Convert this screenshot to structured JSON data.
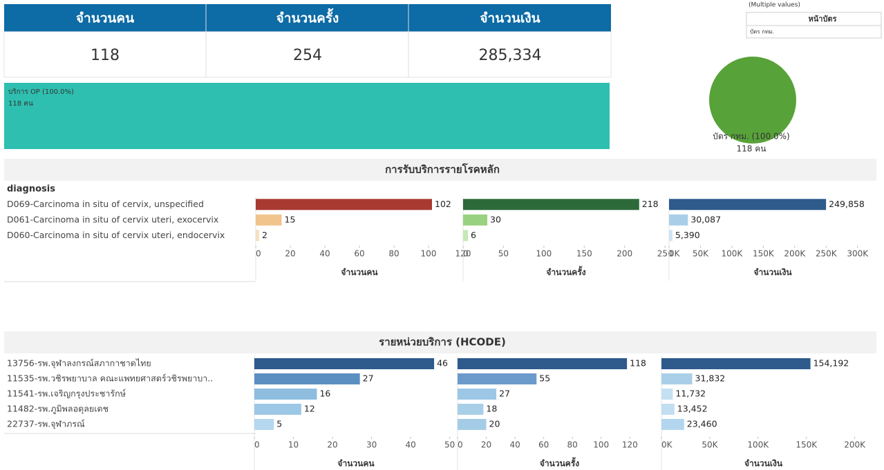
{
  "kpis": [
    {
      "label": "จำนวนคน",
      "value": "118"
    },
    {
      "label": "จำนวนครั้ง",
      "value": "254"
    },
    {
      "label": "จำนวนเงิน",
      "value": "285,334"
    }
  ],
  "filter": {
    "selection": "(Multiple values)",
    "label": "หน้าบัตร",
    "item": "บัตร กทม."
  },
  "treemap": {
    "label": "บริการ OP (100.0%)",
    "sublabel": "118 คน",
    "color": "#2ebfb0"
  },
  "pie": {
    "label": "บัตร กทม. (100.0%)",
    "sublabel": "118 คน",
    "color": "#58a23a"
  },
  "chart_data": [
    {
      "type": "bar",
      "title": "การรับบริการรายโรคหลัก",
      "row_header": "diagnosis",
      "categories": [
        "D069-Carcinoma in situ of cervix, unspecified",
        "D061-Carcinoma in situ of cervix uteri, exocervix",
        "D060-Carcinoma in situ of cervix uteri, endocervix"
      ],
      "panels": [
        {
          "axis_label": "จำนวนคน",
          "values": [
            102,
            15,
            2
          ],
          "colors": [
            "#a83a32",
            "#f0c48c",
            "#f5dfc4"
          ],
          "xlim": [
            0,
            120
          ],
          "xticks": [
            0,
            20,
            40,
            60,
            80,
            100,
            120
          ]
        },
        {
          "axis_label": "จำนวนครั้ง",
          "values": [
            218,
            30,
            6
          ],
          "colors": [
            "#2d6a3a",
            "#98d17f",
            "#c6e8b5"
          ],
          "xlim": [
            0,
            255
          ],
          "xticks": [
            0,
            50,
            100,
            150,
            200,
            250
          ]
        },
        {
          "axis_label": "จำนวนเงิน",
          "values": [
            249858,
            30087,
            5390
          ],
          "value_labels": [
            "249,858",
            "30,087",
            "5,390"
          ],
          "colors": [
            "#2e5a8c",
            "#a9cfe8",
            "#cfe3f2"
          ],
          "xlim": [
            0,
            330000
          ],
          "xticks": [
            {
              "value": 0,
              "label": "0K"
            },
            {
              "value": 50000,
              "label": "50K"
            },
            {
              "value": 100000,
              "label": "100K"
            },
            {
              "value": 150000,
              "label": "150K"
            },
            {
              "value": 200000,
              "label": "200K"
            },
            {
              "value": 250000,
              "label": "250K"
            },
            {
              "value": 300000,
              "label": "300K"
            }
          ]
        }
      ]
    },
    {
      "type": "bar",
      "title": "รายหน่วยบริการ (HCODE)",
      "categories": [
        "13756-รพ.จุฬาลงกรณ์สภากาชาดไทย",
        "11535-รพ.วชิรพยาบาล คณะแพทยศาสตร์วชิรพยาบา..",
        "11541-รพ.เจริญกรุงประชารักษ์",
        "11482-รพ.ภูมิพลอดุลยเดช",
        "22737-รพ.จุฬาภรณ์"
      ],
      "panels": [
        {
          "axis_label": "จำนวนคน",
          "values": [
            46,
            27,
            16,
            12,
            5
          ],
          "colors": [
            "#2e5a8c",
            "#5b8fc2",
            "#8ebde0",
            "#9cc7e6",
            "#b5d7ef"
          ],
          "xlim": [
            0,
            52
          ],
          "xticks": [
            0,
            10,
            20,
            30,
            40,
            50
          ]
        },
        {
          "axis_label": "จำนวนครั้ง",
          "values": [
            118,
            55,
            27,
            18,
            20
          ],
          "colors": [
            "#2e5a8c",
            "#6a9bcb",
            "#9cc7e6",
            "#a9cfe8",
            "#a4cce7"
          ],
          "xlim": [
            0,
            142
          ],
          "xticks": [
            0,
            20,
            40,
            60,
            80,
            100,
            120
          ]
        },
        {
          "axis_label": "จำนวนเงิน",
          "values": [
            154192,
            31832,
            11732,
            13452,
            23460
          ],
          "value_labels": [
            "154,192",
            "31,832",
            "11,732",
            "13,452",
            "23,460"
          ],
          "colors": [
            "#2e5a8c",
            "#a9cfe8",
            "#c5e0f2",
            "#c2def1",
            "#b3d6ee"
          ],
          "xlim": [
            0,
            211000
          ],
          "xticks": [
            {
              "value": 0,
              "label": "0K"
            },
            {
              "value": 50000,
              "label": "50K"
            },
            {
              "value": 100000,
              "label": "100K"
            },
            {
              "value": 150000,
              "label": "150K"
            },
            {
              "value": 200000,
              "label": "200K"
            }
          ]
        }
      ]
    }
  ]
}
